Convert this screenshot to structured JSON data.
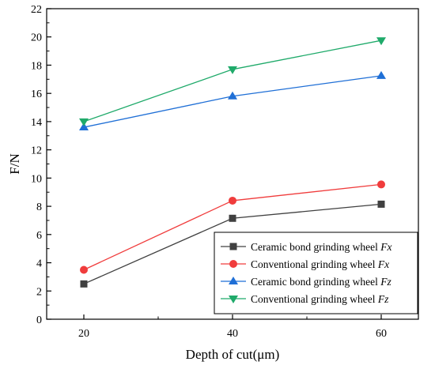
{
  "chart_data": {
    "type": "line",
    "xlabel": "Depth of cut(μm)",
    "ylabel": "F/N",
    "x": [
      20,
      40,
      60
    ],
    "xticks": [
      20,
      40,
      60
    ],
    "xlim": [
      15,
      65
    ],
    "ylim": [
      0,
      22
    ],
    "yticks": [
      0,
      2,
      4,
      6,
      8,
      10,
      12,
      14,
      16,
      18,
      20,
      22
    ],
    "grid": false,
    "legend_position": "bottom-right",
    "series": [
      {
        "name": "Ceramic bond grinding wheel",
        "name_suffix": "Fx",
        "color": "#404040",
        "marker": "square",
        "values": [
          2.5,
          7.15,
          8.15
        ]
      },
      {
        "name": "Conventional grinding wheel",
        "name_suffix": "Fx",
        "color": "#f03c3c",
        "marker": "circle",
        "values": [
          3.5,
          8.4,
          9.55
        ]
      },
      {
        "name": "Ceramic bond grinding wheel",
        "name_suffix": "Fz",
        "color": "#1f6fd6",
        "marker": "triangle-up",
        "values": [
          13.6,
          15.8,
          17.25
        ]
      },
      {
        "name": "Conventional grinding wheel",
        "name_suffix": "Fz",
        "color": "#1faa6a",
        "marker": "triangle-down",
        "values": [
          14.0,
          17.7,
          19.75
        ]
      }
    ]
  }
}
